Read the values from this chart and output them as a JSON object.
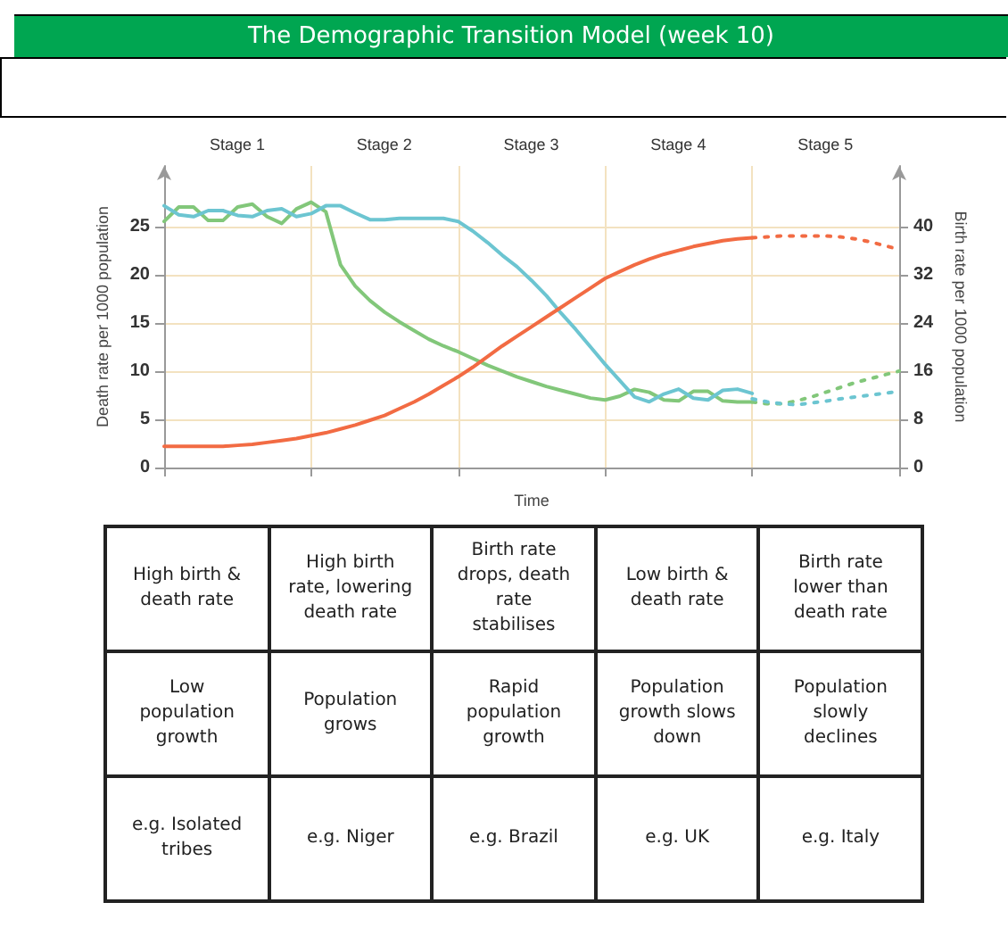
{
  "chart_data": {
    "type": "line",
    "title": "The Demographic Transition Model (week 10)",
    "xlabel": "Time",
    "ylabel": "Death rate per 1000 population",
    "y2label": "Birth rate per 1000 population",
    "categories": [
      null,
      null,
      null,
      null,
      null,
      null,
      null,
      null,
      null,
      null,
      null,
      null,
      null,
      null,
      null,
      null,
      null,
      null,
      null,
      null,
      null,
      null,
      null,
      null,
      null,
      null,
      null,
      null,
      null,
      null,
      null,
      null,
      null,
      null,
      null,
      null,
      null,
      null,
      null,
      null,
      null,
      null,
      null,
      null,
      null,
      null,
      null,
      null,
      null,
      null,
      null
    ],
    "ylim": [
      0,
      31.25
    ],
    "yticks": [
      0,
      5,
      10,
      15,
      20,
      25
    ],
    "y2lim": [
      0,
      50
    ],
    "y2ticks": [
      0,
      8,
      16,
      24,
      32,
      40
    ],
    "grid": true,
    "marker": "none",
    "series": [
      {
        "color": "#82c77a",
        "line_style": "solid",
        "values": [
          25.5,
          27.0,
          27.0,
          25.6,
          25.6,
          27.0,
          27.3,
          26.0,
          25.3,
          26.8,
          27.5,
          26.5,
          21.0,
          18.8,
          17.3,
          16.1,
          15.1,
          14.2,
          13.3,
          12.6,
          12.0,
          11.3,
          10.6,
          10.0,
          9.4,
          8.9,
          8.4,
          8.0,
          7.6,
          7.2,
          7.0,
          7.4,
          8.1,
          7.8,
          7.0,
          6.9,
          7.9,
          7.9,
          6.9,
          6.8,
          6.8,
          null,
          null,
          null,
          null,
          null,
          null,
          null,
          null,
          null,
          null
        ]
      },
      {
        "color": "#82c77a",
        "line_style": "dotted",
        "values": [
          null,
          null,
          null,
          null,
          null,
          null,
          null,
          null,
          null,
          null,
          null,
          null,
          null,
          null,
          null,
          null,
          null,
          null,
          null,
          null,
          null,
          null,
          null,
          null,
          null,
          null,
          null,
          null,
          null,
          null,
          null,
          null,
          null,
          null,
          null,
          null,
          null,
          null,
          null,
          null,
          6.8,
          6.6,
          6.6,
          6.9,
          7.3,
          7.8,
          8.3,
          8.8,
          9.2,
          9.6,
          10.0
        ]
      },
      {
        "color": "#6cc5d1",
        "line_style": "solid",
        "axis": "y2",
        "values": [
          43.4,
          41.9,
          41.6,
          42.6,
          42.6,
          41.8,
          41.6,
          42.6,
          42.9,
          41.6,
          42.1,
          43.4,
          43.4,
          42.2,
          41.1,
          41.1,
          41.3,
          41.3,
          41.3,
          41.3,
          40.8,
          39.2,
          37.3,
          35.2,
          33.3,
          31.0,
          28.5,
          25.6,
          22.9,
          20.0,
          17.1,
          14.4,
          11.7,
          10.9,
          12.2,
          13.0,
          11.5,
          11.2,
          12.8,
          13.0,
          12.3,
          null,
          null,
          null,
          null,
          null,
          null,
          null,
          null,
          null,
          null
        ]
      },
      {
        "color": "#6cc5d1",
        "line_style": "dotted",
        "axis": "y2",
        "values": [
          null,
          null,
          null,
          null,
          null,
          null,
          null,
          null,
          null,
          null,
          null,
          null,
          null,
          null,
          null,
          null,
          null,
          null,
          null,
          null,
          null,
          null,
          null,
          null,
          null,
          null,
          null,
          null,
          null,
          null,
          null,
          null,
          null,
          null,
          null,
          null,
          null,
          null,
          null,
          null,
          11.4,
          10.9,
          10.6,
          10.4,
          10.7,
          11.0,
          11.4,
          11.7,
          12.0,
          12.3,
          12.6
        ]
      },
      {
        "color": "#f26b43",
        "line_style": "solid",
        "values": [
          2.2,
          2.2,
          2.2,
          2.2,
          2.2,
          2.3,
          2.4,
          2.6,
          2.8,
          3.0,
          3.3,
          3.6,
          4.0,
          4.4,
          4.9,
          5.4,
          6.1,
          6.8,
          7.6,
          8.5,
          9.4,
          10.4,
          11.5,
          12.6,
          13.6,
          14.6,
          15.6,
          16.6,
          17.6,
          18.6,
          19.6,
          20.3,
          21.0,
          21.6,
          22.1,
          22.5,
          22.9,
          23.2,
          23.5,
          23.7,
          23.8,
          null,
          null,
          null,
          null,
          null,
          null,
          null,
          null,
          null,
          null
        ]
      },
      {
        "color": "#f26b43",
        "line_style": "dotted",
        "values": [
          null,
          null,
          null,
          null,
          null,
          null,
          null,
          null,
          null,
          null,
          null,
          null,
          null,
          null,
          null,
          null,
          null,
          null,
          null,
          null,
          null,
          null,
          null,
          null,
          null,
          null,
          null,
          null,
          null,
          null,
          null,
          null,
          null,
          null,
          null,
          null,
          null,
          null,
          null,
          null,
          23.8,
          23.9,
          24.0,
          24.0,
          24.0,
          24.0,
          23.9,
          23.7,
          23.4,
          23.0,
          22.6
        ]
      }
    ],
    "annotations": [
      "Stage 1",
      "Stage 2",
      "Stage 3",
      "Stage 4",
      "Stage 5",
      "High birth & death rate",
      "High birth rate, lowering death rate",
      "Birth rate drops, death rate stabilises",
      "Low birth & death rate",
      "Birth rate lower than death rate",
      "Low population growth",
      "Population grows",
      "Rapid population growth",
      "Population growth slows down",
      "Population slowly declines",
      "e.g. Isolated tribes",
      "e.g. Niger",
      "e.g. Brazil",
      "e.g. UK",
      "e.g. Italy"
    ]
  }
}
